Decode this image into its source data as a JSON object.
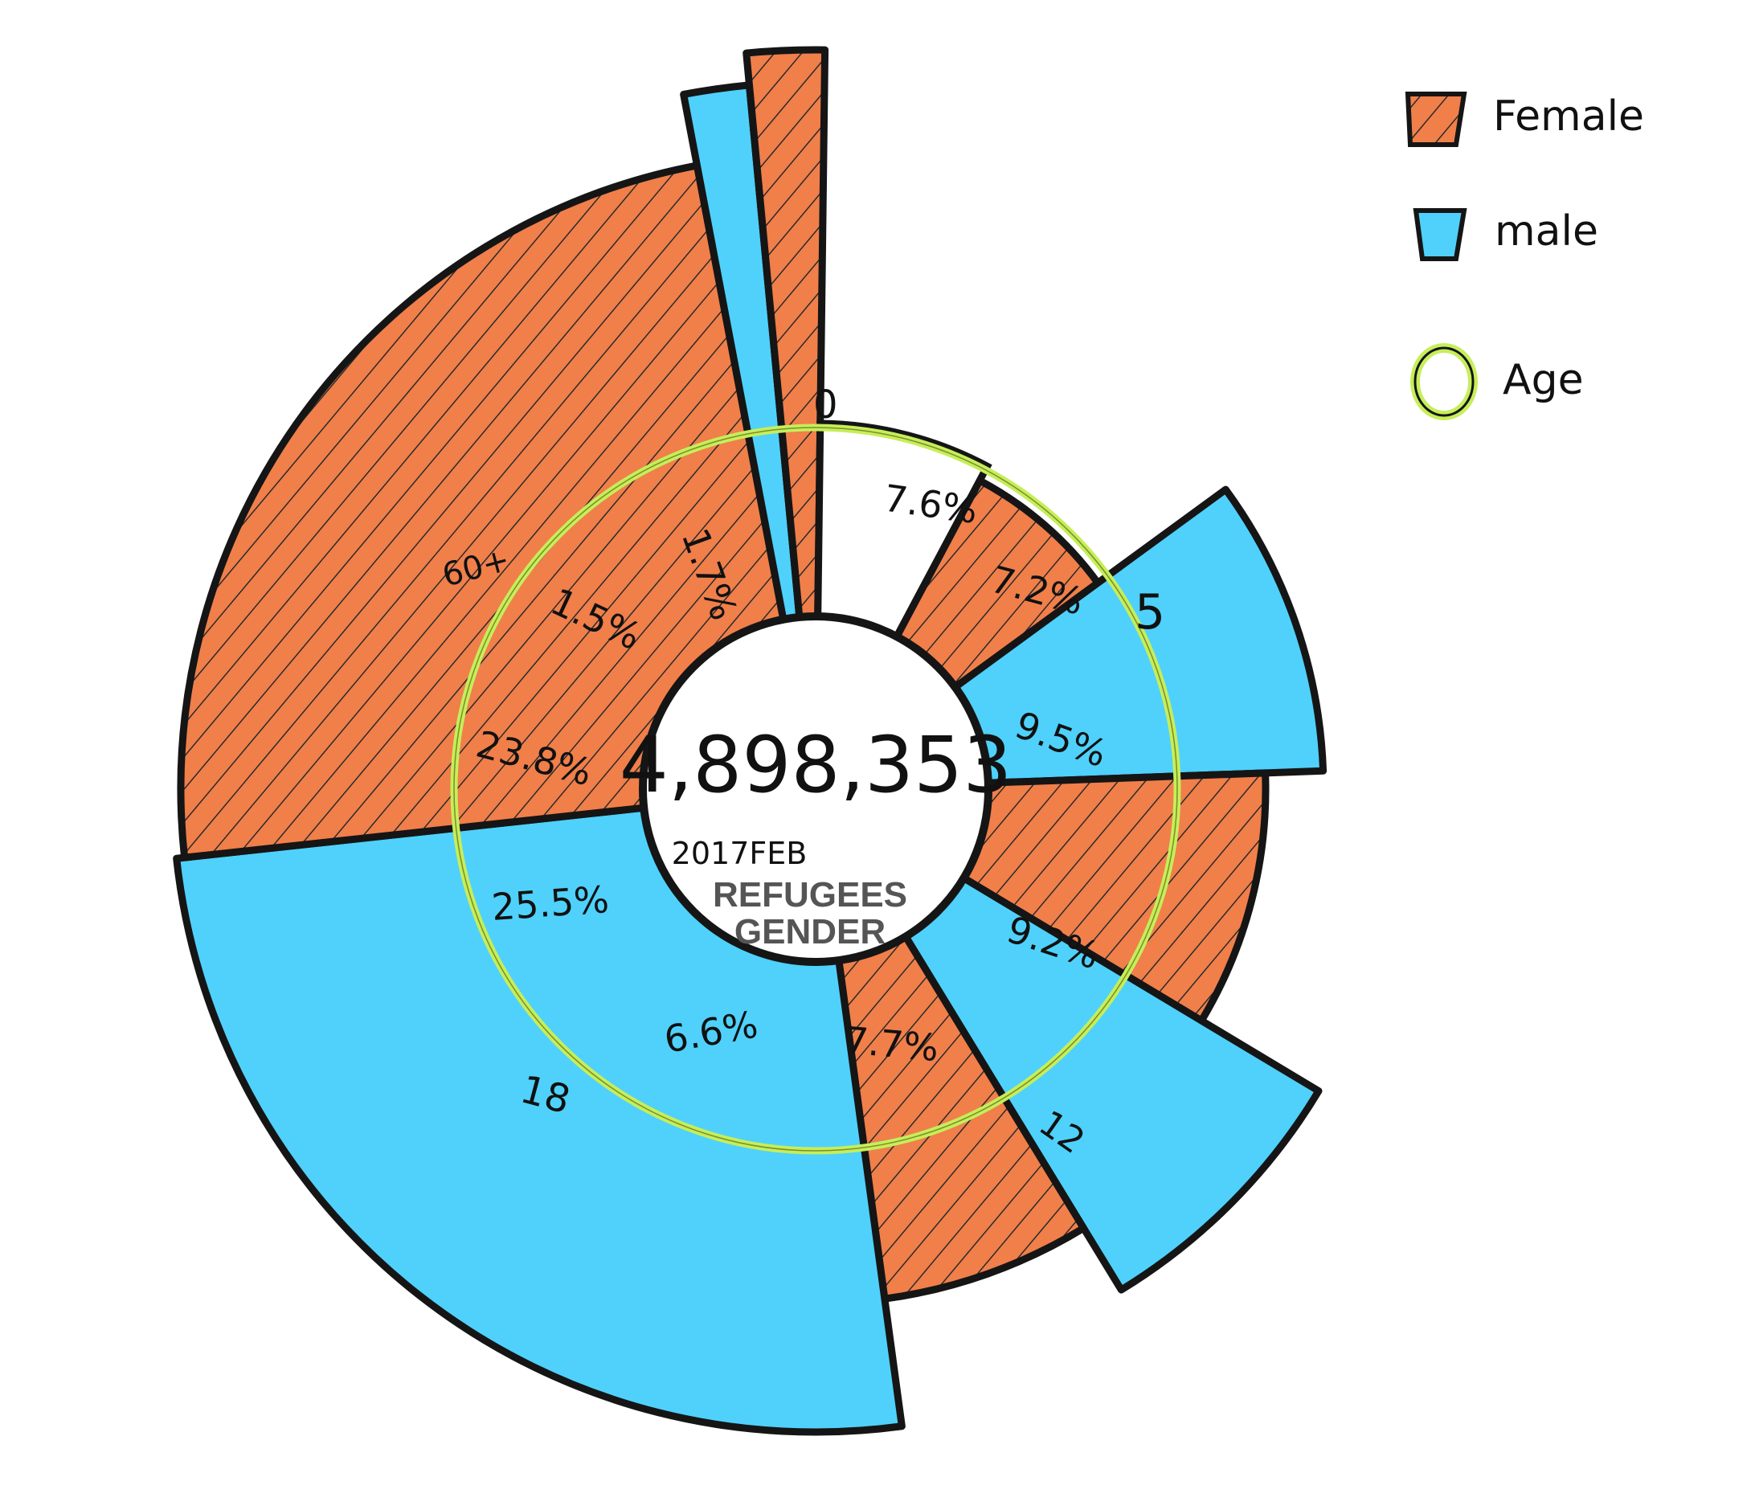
{
  "chart_data": {
    "type": "pie",
    "center": {
      "total": "4,898,353",
      "date": "2017FEB",
      "title_line1": "REFUGEES",
      "title_line2": "GENDER"
    },
    "legend": [
      {
        "label": "Female",
        "color": "#F07F4A"
      },
      {
        "label": "male",
        "color": "#4FD1FB"
      },
      {
        "label": "Age",
        "color": "#C6EE5A"
      }
    ],
    "age_labels": [
      "0",
      "5",
      "12",
      "18",
      "60+"
    ],
    "series": [
      {
        "age_group": "0-4",
        "gender": "female",
        "label": "7.2%",
        "value": 7.2
      },
      {
        "age_group": "5-11",
        "gender": "male",
        "label": "9.5%",
        "value": 9.5
      },
      {
        "age_group": "5-11",
        "gender": "female",
        "label": "9.2%",
        "value": 9.2
      },
      {
        "age_group": "12-17",
        "gender": "male",
        "label": "7.7%",
        "value": 7.7
      },
      {
        "age_group": "12-17",
        "gender": "female",
        "label": "6.6%",
        "value": 6.6
      },
      {
        "age_group": "18-59",
        "gender": "male",
        "label": "25.5%",
        "value": 25.5
      },
      {
        "age_group": "18-59",
        "gender": "female",
        "label": "23.8%",
        "value": 23.8
      },
      {
        "age_group": "60+",
        "gender": "male",
        "label": "1.5%",
        "value": 1.5
      },
      {
        "age_group": "60+",
        "gender": "female",
        "label": "1.7%",
        "value": 1.7
      },
      {
        "age_group": "0-4",
        "gender": "male",
        "label": "7.6%",
        "value": 7.6
      }
    ],
    "colors": {
      "female": "#F07F4A",
      "male": "#4FD1FB",
      "age_ring": "#C6EE5A",
      "outline": "#151515"
    }
  }
}
